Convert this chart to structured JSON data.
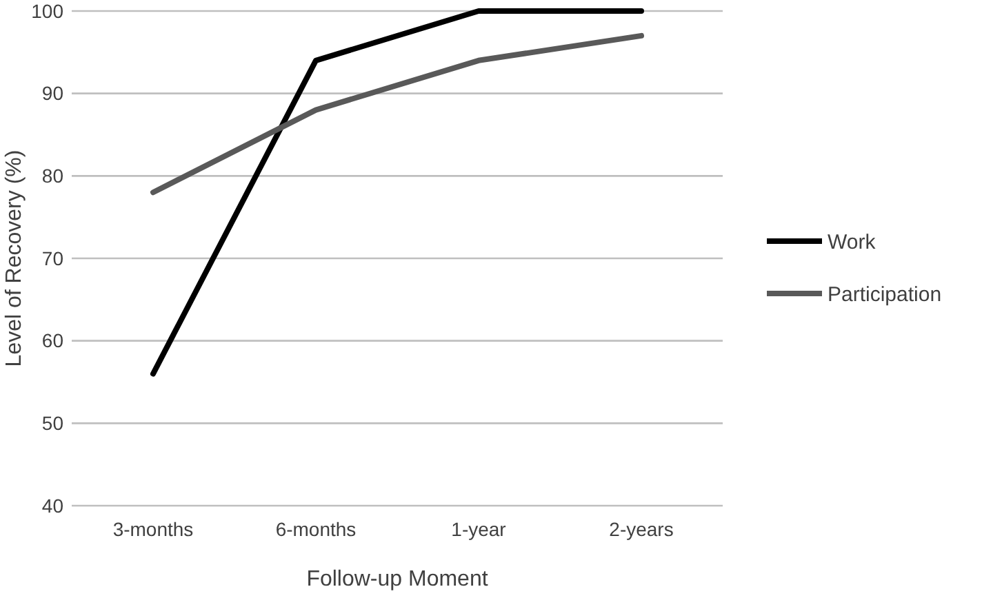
{
  "chart_data": {
    "type": "line",
    "xlabel": "Follow-up Moment",
    "ylabel": "Level of Recovery (%)",
    "categories": [
      "3-months",
      "6-months",
      "1-year",
      "2-years"
    ],
    "series": [
      {
        "name": "Work",
        "color": "#000000",
        "values": [
          56,
          94,
          100,
          100
        ]
      },
      {
        "name": "Participation",
        "color": "#595959",
        "values": [
          78,
          88,
          94,
          97
        ]
      }
    ],
    "ylim": [
      40,
      100
    ],
    "yticks": [
      40,
      50,
      60,
      70,
      80,
      90,
      100
    ],
    "grid": "y",
    "legend": "right",
    "marker": "none",
    "line_style": "solid"
  }
}
